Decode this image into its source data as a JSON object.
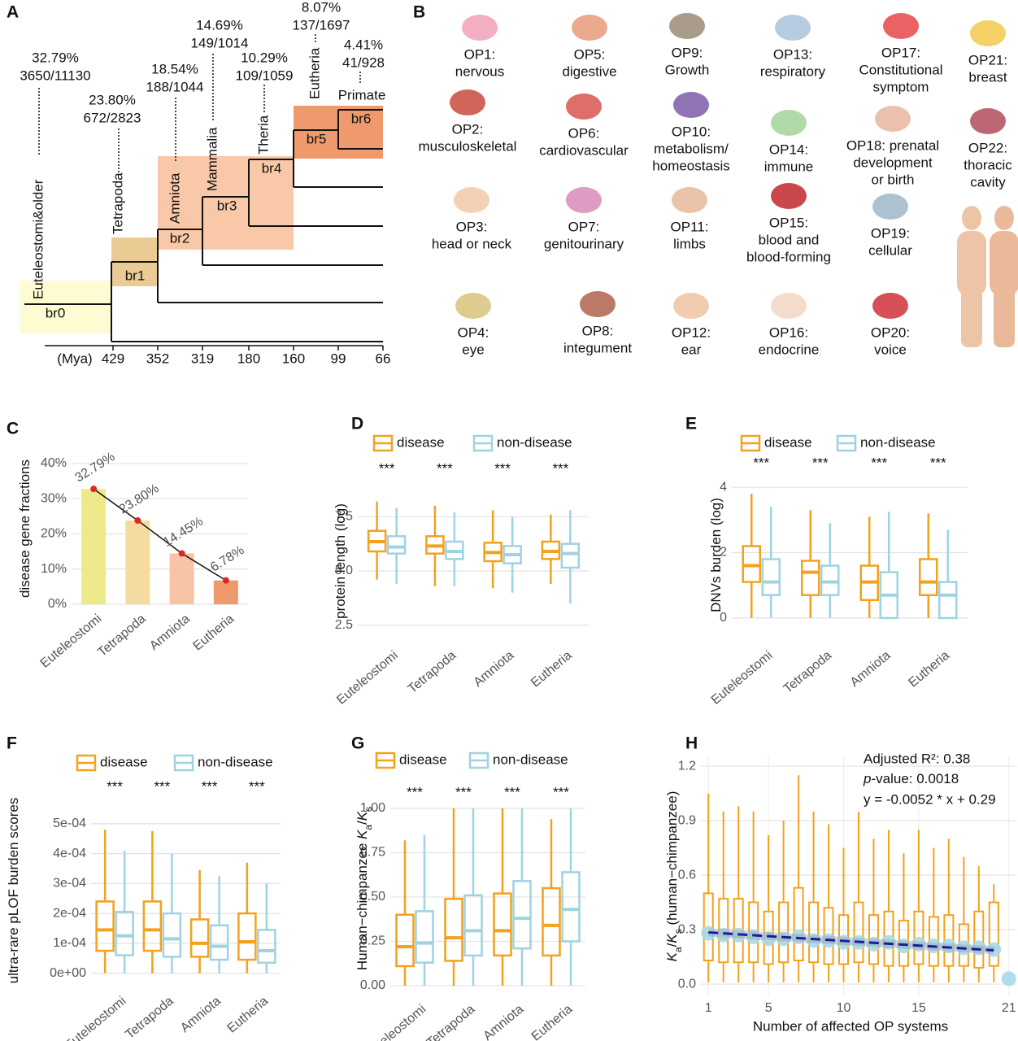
{
  "tree": {
    "label": "A",
    "axis_unit": "(Mya)",
    "ticks": [
      429,
      352,
      319,
      180,
      160,
      99,
      66
    ],
    "branches": [
      "br0",
      "br1",
      "br2",
      "br3",
      "br4",
      "br5",
      "br6"
    ],
    "clades": [
      {
        "name": "Euteleostomi&older",
        "percent": "32.79%",
        "fraction": "3650/11130"
      },
      {
        "name": "Tetrapoda",
        "percent": "23.80%",
        "fraction": "672/2823"
      },
      {
        "name": "Amniota",
        "percent": "18.54%",
        "fraction": "188/1044"
      },
      {
        "name": "Mammalia",
        "percent": "14.69%",
        "fraction": "149/1014"
      },
      {
        "name": "Theria",
        "percent": "10.29%",
        "fraction": "109/1059"
      },
      {
        "name": "Eutheria",
        "percent": "8.07%",
        "fraction": "137/1697"
      },
      {
        "name": "Primate",
        "percent": "4.41%",
        "fraction": "41/928"
      }
    ]
  },
  "organ_systems": {
    "label": "B",
    "items": [
      [
        "OP1:",
        "nervous"
      ],
      [
        "OP2:",
        "musculoskeletal"
      ],
      [
        "OP3:",
        "head or neck"
      ],
      [
        "OP4:",
        "eye"
      ],
      [
        "OP5:",
        "digestive"
      ],
      [
        "OP6:",
        "cardiovascular"
      ],
      [
        "OP7:",
        "genitourinary"
      ],
      [
        "OP8:",
        "integument"
      ],
      [
        "OP9:",
        "Growth"
      ],
      [
        "OP10:",
        "metabolism/",
        "homeostasis"
      ],
      [
        "OP11:",
        "limbs"
      ],
      [
        "OP12:",
        "ear"
      ],
      [
        "OP13:",
        "respiratory"
      ],
      [
        "OP14:",
        "immune"
      ],
      [
        "OP15:",
        "blood and",
        "blood-forming"
      ],
      [
        "OP16:",
        "endocrine"
      ],
      [
        "OP17:",
        "Constitutional",
        "symptom"
      ],
      [
        "OP18: prenatal",
        "development",
        "or birth"
      ],
      [
        "OP19:",
        "cellular"
      ],
      [
        "OP20:",
        "voice"
      ],
      [
        "OP21:",
        "breast"
      ],
      [
        "OP22:",
        "thoracic",
        "cavity"
      ]
    ]
  },
  "chart_data": [
    {
      "type": "bar",
      "label": "C",
      "ylabel": [
        {
          "text": "disease gene fractions"
        }
      ],
      "categories": [
        "Euteleostomi",
        "Tetrapoda",
        "Amniota",
        "Eutheria"
      ],
      "values": [
        32.79,
        23.8,
        14.45,
        6.78
      ],
      "value_labels": [
        "32.79%",
        "23.80%",
        "14.45%",
        "6.78%"
      ],
      "colors": [
        "#eee98a",
        "#f6dba0",
        "#f7c4a6",
        "#ee9a6c"
      ],
      "point_color": "#e2261b",
      "line_color": "#111111",
      "ylim": [
        0,
        43
      ],
      "yticks": [
        {
          "value": 0,
          "label": "0%"
        },
        {
          "value": 10,
          "label": "10%"
        },
        {
          "value": 20,
          "label": "20%"
        },
        {
          "value": 30,
          "label": "30%"
        },
        {
          "value": 40,
          "label": "40%"
        }
      ],
      "grid": true
    },
    {
      "type": "box",
      "label": "D",
      "ylabel": [
        {
          "text": "protein length (log)"
        }
      ],
      "categories": [
        "Euteleostomi",
        "Tetrapoda",
        "Amniota",
        "Eutheria"
      ],
      "annotations": [
        "***",
        "***",
        "***",
        "***"
      ],
      "series": [
        {
          "name": "disease",
          "color": "#f4a11d",
          "min": [
            4.6,
            4.3,
            4.2,
            4.4
          ],
          "q1": [
            5.9,
            5.8,
            5.45,
            5.55
          ],
          "median": [
            6.35,
            6.15,
            5.85,
            5.9
          ],
          "q3": [
            6.85,
            6.6,
            6.3,
            6.35
          ],
          "max": [
            8.2,
            8.0,
            7.8,
            7.6
          ]
        },
        {
          "name": "non-disease",
          "color": "#9ed3e2",
          "min": [
            4.4,
            4.3,
            4.0,
            3.5
          ],
          "q1": [
            5.8,
            5.55,
            5.35,
            5.15
          ],
          "median": [
            6.1,
            5.9,
            5.75,
            5.8
          ],
          "q3": [
            6.6,
            6.35,
            6.15,
            6.25
          ],
          "max": [
            7.9,
            7.7,
            7.5,
            7.8
          ]
        }
      ],
      "ylim": [
        1.7,
        9.2
      ],
      "yticks": [
        2.5,
        {
          "value": 5,
          "label": "5.0"
        },
        7.5
      ],
      "grid": true
    },
    {
      "type": "box",
      "label": "E",
      "ylabel": [
        {
          "text": "DNVs burden (log)"
        }
      ],
      "categories": [
        "Euteleostomi",
        "Tetrapoda",
        "Amniota",
        "Eutheria"
      ],
      "annotations": [
        "***",
        "***",
        "***",
        "***"
      ],
      "series": [
        {
          "name": "disease",
          "color": "#f4a11d",
          "min": [
            0,
            0,
            0,
            0
          ],
          "q1": [
            1.1,
            0.7,
            0.55,
            0.7
          ],
          "median": [
            1.6,
            1.4,
            1.1,
            1.1
          ],
          "q3": [
            2.2,
            1.75,
            1.6,
            1.8
          ],
          "max": [
            3.8,
            3.3,
            3.1,
            3.2
          ]
        },
        {
          "name": "non-disease",
          "color": "#9ed3e2",
          "min": [
            0,
            0,
            0,
            0
          ],
          "q1": [
            0.7,
            0.7,
            0,
            0
          ],
          "median": [
            1.1,
            1.1,
            0.7,
            0.7
          ],
          "q3": [
            1.8,
            1.6,
            1.4,
            1.1
          ],
          "max": [
            3.4,
            2.9,
            3.25,
            2.7
          ]
        }
      ],
      "ylim": [
        -0.75,
        4.6
      ],
      "yticks": [
        0,
        2,
        4
      ],
      "grid": true
    },
    {
      "type": "box",
      "label": "F",
      "ylabel": [
        {
          "text": "ultra-rare pLOF burden scores"
        }
      ],
      "categories": [
        "Euteleostomi",
        "Tetrapoda",
        "Amniota",
        "Eutheria"
      ],
      "annotations": [
        "***",
        "***",
        "***",
        "***"
      ],
      "series": [
        {
          "name": "disease",
          "color": "#f4a11d",
          "min": [
            0,
            0,
            0,
            0
          ],
          "q1": [
            7.5e-05,
            7.5e-05,
            5.5e-05,
            4.5e-05
          ],
          "median": [
            0.000145,
            0.000145,
            0.0001,
            0.000105
          ],
          "q3": [
            0.00024,
            0.00024,
            0.00018,
            0.0002
          ],
          "max": [
            0.00048,
            0.000475,
            0.000345,
            0.00037
          ]
        },
        {
          "name": "non-disease",
          "color": "#9ed3e2",
          "min": [
            0,
            0,
            0,
            0
          ],
          "q1": [
            6e-05,
            5.5e-05,
            4.5e-05,
            3.5e-05
          ],
          "median": [
            0.000125,
            0.000115,
            9e-05,
            7.5e-05
          ],
          "q3": [
            0.000205,
            0.0002,
            0.00016,
            0.000145
          ],
          "max": [
            0.00041,
            0.0004,
            0.000325,
            0.0003
          ]
        }
      ],
      "ylim": [
        -5e-05,
        0.000603
      ],
      "yticks": [
        {
          "value": 0,
          "label": "0e+00"
        },
        {
          "value": 0.0001,
          "label": "1e-04"
        },
        {
          "value": 0.0002,
          "label": "2e-04"
        },
        {
          "value": 0.0003,
          "label": "3e-04"
        },
        {
          "value": 0.0004,
          "label": "4e-04"
        },
        {
          "value": 0.0005,
          "label": "5e-04"
        }
      ],
      "grid": true
    },
    {
      "type": "box",
      "label": "G",
      "ylabel": [
        {
          "text": "Human−chimpanzee "
        },
        {
          "text": "K",
          "style": "italic"
        },
        {
          "text": "a",
          "style": "sub"
        },
        {
          "text": "/"
        },
        {
          "text": "K",
          "style": "italic"
        },
        {
          "text": "s",
          "style": "sub"
        }
      ],
      "categories": [
        "Euteleostomi",
        "Tetrapoda",
        "Amniota",
        "Eutheria"
      ],
      "annotations": [
        "***",
        "***",
        "***",
        "***"
      ],
      "series": [
        {
          "name": "disease",
          "color": "#f4a11d",
          "min": [
            0,
            0,
            0,
            0
          ],
          "q1": [
            0.11,
            0.14,
            0.17,
            0.17
          ],
          "median": [
            0.22,
            0.27,
            0.31,
            0.34
          ],
          "q3": [
            0.4,
            0.49,
            0.52,
            0.55
          ],
          "max": [
            0.82,
            1.0,
            1.0,
            0.94
          ]
        },
        {
          "name": "non-disease",
          "color": "#9ed3e2",
          "min": [
            0,
            0,
            0,
            0
          ],
          "q1": [
            0.13,
            0.17,
            0.21,
            0.25
          ],
          "median": [
            0.24,
            0.31,
            0.38,
            0.43
          ],
          "q3": [
            0.42,
            0.51,
            0.59,
            0.64
          ],
          "max": [
            0.85,
            1.0,
            1.0,
            1.0
          ]
        }
      ],
      "ylim": [
        -0.06,
        1.156
      ],
      "yticks": [
        {
          "value": 0,
          "label": "0.00"
        },
        0.25,
        {
          "value": 0.5,
          "label": "0.50"
        },
        0.75,
        {
          "value": 1,
          "label": "1.00"
        }
      ],
      "grid": true
    },
    {
      "type": "box",
      "label": "H",
      "ylabel": [
        {
          "text": "K",
          "style": "italic"
        },
        {
          "text": "a",
          "style": "sub"
        },
        {
          "text": "/"
        },
        {
          "text": "K",
          "style": "italic"
        },
        {
          "text": "s",
          "style": "sub"
        },
        {
          "text": " (human−chimpanzee)"
        }
      ],
      "xlabel": "Number of affected OP systems",
      "x": [
        1,
        2,
        3,
        4,
        5,
        6,
        7,
        8,
        9,
        10,
        11,
        12,
        13,
        14,
        15,
        16,
        17,
        18,
        19,
        20,
        21
      ],
      "series": [
        {
          "color": "#f4a11d",
          "min": [
            0.01,
            0.01,
            0.01,
            0.01,
            0.01,
            0.01,
            0.01,
            0.01,
            0.01,
            0.01,
            0.01,
            0.01,
            0.01,
            0.01,
            0.01,
            0.01,
            0.01,
            0.01,
            0.01,
            0.01,
            null
          ],
          "q1": [
            0.13,
            0.12,
            0.12,
            0.12,
            0.11,
            0.12,
            0.13,
            0.12,
            0.11,
            0.11,
            0.12,
            0.11,
            0.1,
            0.1,
            0.11,
            0.1,
            0.1,
            0.1,
            0.09,
            0.1,
            null
          ],
          "median": [
            0.28,
            0.25,
            0.26,
            0.25,
            0.23,
            0.24,
            0.27,
            0.24,
            0.23,
            0.22,
            0.24,
            0.22,
            0.21,
            0.2,
            0.22,
            0.21,
            0.21,
            0.2,
            0.2,
            0.2,
            null
          ],
          "q3": [
            0.5,
            0.47,
            0.47,
            0.45,
            0.4,
            0.45,
            0.53,
            0.45,
            0.42,
            0.38,
            0.45,
            0.38,
            0.4,
            0.35,
            0.4,
            0.37,
            0.38,
            0.33,
            0.4,
            0.45,
            null
          ],
          "max": [
            1.05,
            0.95,
            0.98,
            0.95,
            0.82,
            0.9,
            1.15,
            0.95,
            0.88,
            0.75,
            0.95,
            0.8,
            0.85,
            0.72,
            0.85,
            0.75,
            0.8,
            0.7,
            0.65,
            0.55,
            null
          ]
        }
      ],
      "means": [
        0.28,
        0.27,
        0.27,
        0.26,
        0.25,
        0.25,
        0.26,
        0.24,
        0.24,
        0.23,
        0.23,
        0.22,
        0.23,
        0.21,
        0.22,
        0.21,
        0.21,
        0.2,
        0.2,
        0.19,
        0.03
      ],
      "mean_color": "#a6d9e8",
      "fit": {
        "slope": -0.0052,
        "intercept": 0.29,
        "color": "#1a1aa6"
      },
      "stats": {
        "r2": "Adjusted R²:  0.38",
        "p_italic": "p",
        "p_value": "-value: 0.0018",
        "equation": "y = -0.0052 * x + 0.29"
      },
      "xlim": [
        0.5,
        21.5
      ],
      "xticks": [
        1,
        5,
        10,
        15,
        21
      ],
      "ylim": [
        -0.067,
        1.254
      ],
      "yticks": [
        {
          "value": 0,
          "label": "0.0"
        },
        0.3,
        0.6,
        0.9,
        1.2
      ],
      "grid": true
    }
  ]
}
